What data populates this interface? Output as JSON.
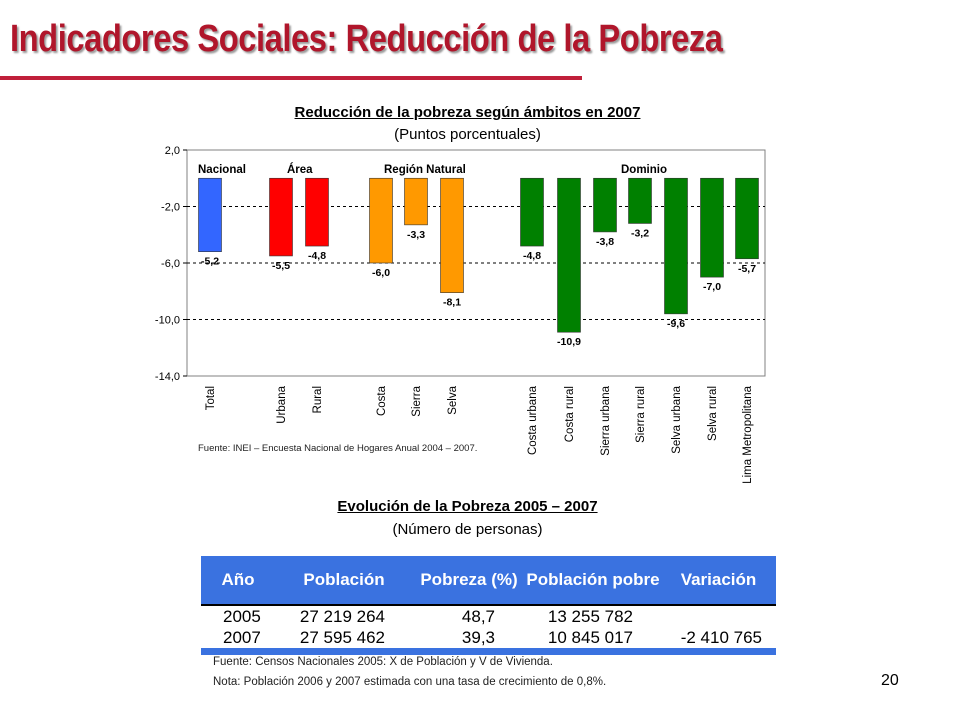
{
  "slide": {
    "title": "Indicadores Sociales: Reducción de la Pobreza",
    "page_number": "20"
  },
  "chart_data": {
    "type": "bar",
    "title": "Reducción de la pobreza según ámbitos en 2007",
    "subtitle": "(Puntos porcentuales)",
    "ylim": [
      -14,
      2
    ],
    "yticks": [
      "2,0",
      "-2,0",
      "-6,0",
      "-10,0",
      "-14,0"
    ],
    "grid": true,
    "groups": [
      "Nacional",
      "Área",
      "Región Natural",
      "Dominio"
    ],
    "categories": [
      "Total",
      "Urbana",
      "Rural",
      "Costa",
      "Sierra",
      "Selva",
      "Costa urbana",
      "Costa rural",
      "Sierra urbana",
      "Sierra rural",
      "Selva urbana",
      "Selva rural",
      "Lima Metropolitana"
    ],
    "values": [
      -5.2,
      -5.5,
      -4.8,
      -6.0,
      -3.3,
      -8.1,
      -4.8,
      -10.9,
      -3.8,
      -3.2,
      -9.6,
      -7.0,
      -5.7
    ],
    "value_labels": [
      "-5,2",
      "-5,5",
      "-4,8",
      "-6,0",
      "-3,3",
      "-8,1",
      "-4,8",
      "-10,9",
      "-3,8",
      "-3,2",
      "-9,6",
      "-7,0",
      "-5,7"
    ],
    "group_of_bar": [
      0,
      1,
      1,
      2,
      2,
      2,
      3,
      3,
      3,
      3,
      3,
      3,
      3
    ],
    "colors": [
      "#3366ff",
      "#ff0000",
      "#ff9900",
      "#008000"
    ],
    "source": "Fuente: INEI – Encuesta Nacional de Hogares Anual 2004 – 2007."
  },
  "table": {
    "title": "Evolución de la Pobreza 2005 – 2007",
    "subtitle": "(Número de personas)",
    "headers": [
      "Año",
      "Población",
      "Pobreza (%)",
      "Población pobre",
      "Variación"
    ],
    "rows": [
      [
        "2005",
        "27 219 264",
        "48,7",
        "13 255 782",
        ""
      ],
      [
        "2007",
        "27 595 462",
        "39,3",
        "10 845 017",
        "-2 410 765"
      ]
    ],
    "source": "Fuente: Censos Nacionales 2005: X de Población y V de Vivienda.",
    "note": "Nota: Población 2006 y 2007 estimada con una tasa de crecimiento de 0,8%."
  }
}
